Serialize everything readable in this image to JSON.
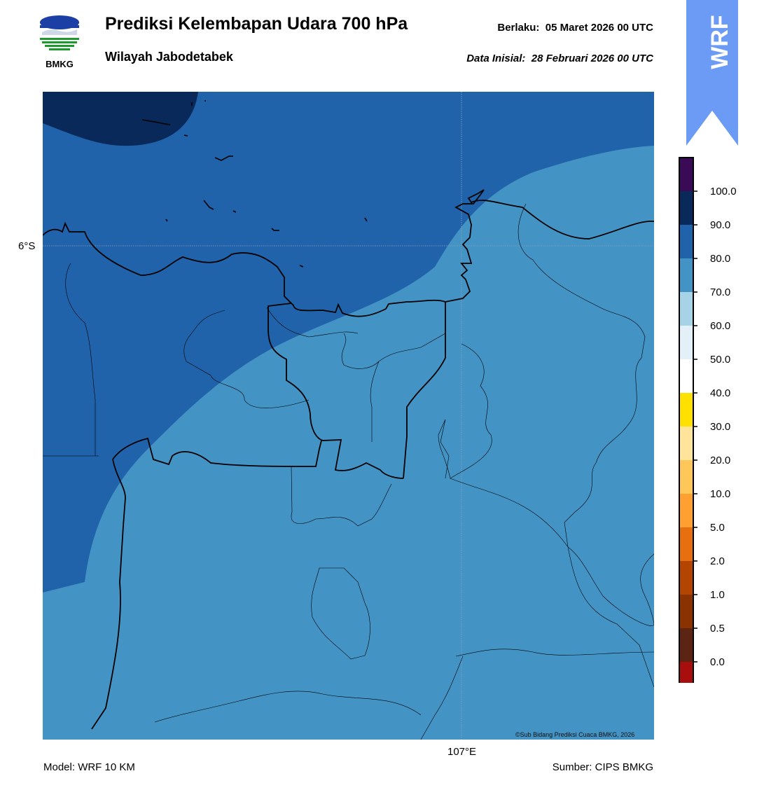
{
  "header": {
    "logo_text": "BMKG",
    "title": "Prediksi Kelembapan Udara 700 hPa",
    "subtitle": "Wilayah Jabodetabek",
    "valid_label": "Berlaku:",
    "valid_value": "05 Maret 2026 00 UTC",
    "init_label": "Data Inisial:",
    "init_value": "28 Februari 2026 00 UTC"
  },
  "badge": {
    "text": "WRF",
    "color": "#6b9bf5"
  },
  "map": {
    "lat_label": "6°S",
    "lon_label": "107°E",
    "credit": "©Sub Bidang Prediksi Cuaca BMKG, 2026",
    "fill_colors": {
      "dark": "#08295a",
      "mid": "#2163aa",
      "light": "#4493c5"
    }
  },
  "colorbar": {
    "ticks": [
      "100.0",
      "90.0",
      "80.0",
      "70.0",
      "60.0",
      "50.0",
      "40.0",
      "30.0",
      "20.0",
      "10.0",
      "5.0",
      "2.0",
      "1.0",
      "0.5",
      "0.0"
    ],
    "colors": [
      "#3b0a57",
      "#08295a",
      "#2163aa",
      "#4493c5",
      "#a6d3e6",
      "#e4f0f7",
      "#ffffff",
      "#ffe100",
      "#ffe49a",
      "#ffc75a",
      "#ffa030",
      "#e86f10",
      "#b34500",
      "#8a3300",
      "#5c2412",
      "#a90e0e",
      "#e8443a"
    ]
  },
  "footer": {
    "model": "Model: WRF 10 KM",
    "source": "Sumber: CIPS BMKG"
  }
}
